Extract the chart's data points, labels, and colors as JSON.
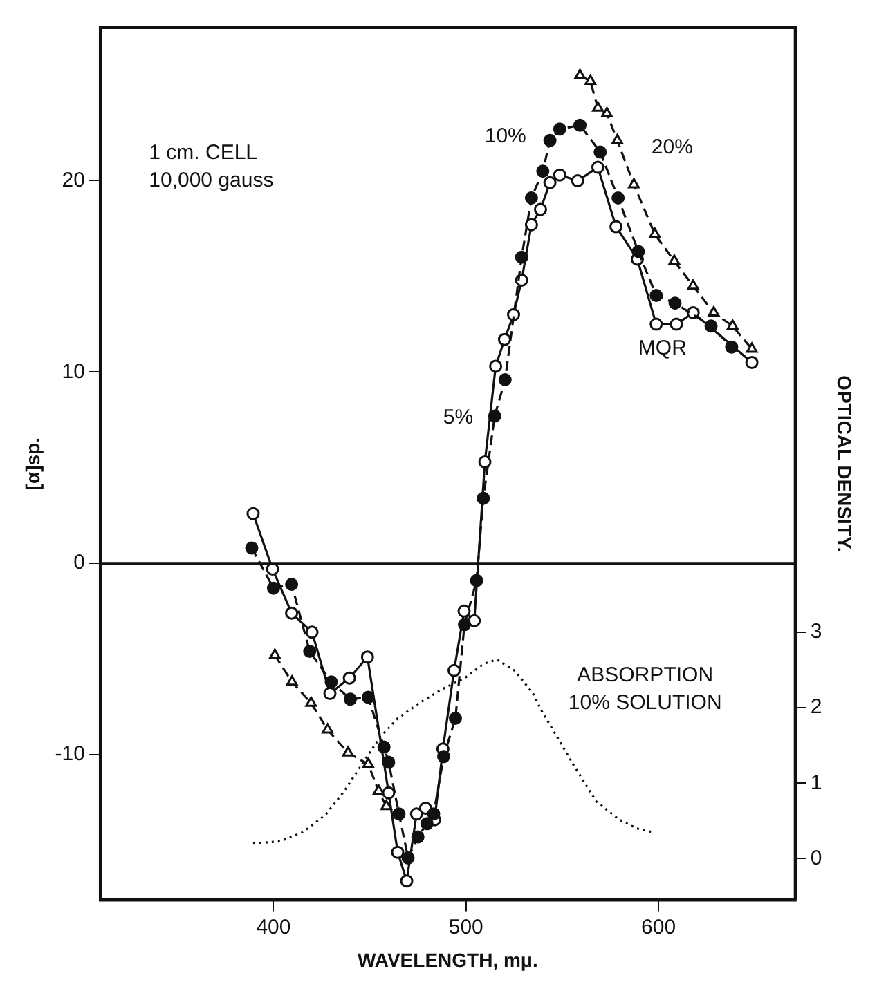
{
  "chart_data": {
    "type": "line",
    "xlabel": "WAVELENGTH, mμ.",
    "ylabel": "[α]sp.",
    "y2label": "OPTICAL DENSITY.",
    "xlim": [
      310,
      671
    ],
    "xticks": [
      400,
      500,
      600
    ],
    "ylim": [
      -17.6,
      28
    ],
    "yticks": [
      -10,
      0,
      10,
      20
    ],
    "y2lim": [
      -0.55,
      11.02
    ],
    "y2ticks": [
      0,
      1,
      2,
      3
    ],
    "grid": false,
    "legend": false,
    "series": [
      {
        "name": "5%",
        "color": "#111111",
        "marker": "circle",
        "line_style": "solid",
        "x": [
          389.4,
          399.5,
          409.4,
          420,
          429.3,
          439.4,
          448.8,
          459.8,
          464.5,
          469.2,
          474.3,
          479,
          483.7,
          488,
          493.8,
          499,
          504.3,
          509.8,
          515.4,
          520,
          524.7,
          528.9,
          534,
          538.7,
          543.6,
          548.7,
          558,
          568.5,
          577.9,
          589,
          598.8,
          609.3,
          618,
          648.5
        ],
        "values": [
          2.6,
          -0.3,
          -2.6,
          -3.6,
          -6.8,
          -6,
          -4.9,
          -12,
          -15.1,
          -16.6,
          -13.1,
          -12.8,
          -13.4,
          -9.7,
          -5.6,
          -2.5,
          -3,
          5.3,
          10.3,
          11.7,
          13,
          14.8,
          17.7,
          18.5,
          19.9,
          20.3,
          20,
          20.7,
          17.6,
          15.9,
          12.5,
          12.5,
          13.1,
          10.5
        ]
      },
      {
        "name": "10%",
        "color": "#111111",
        "marker": "circle",
        "line_style": "dashed",
        "x": [
          388.7,
          400,
          409.4,
          418.8,
          430,
          439.9,
          449.2,
          457.4,
          459.8,
          465.2,
          469.9,
          475,
          479.7,
          483.2,
          488.4,
          494.5,
          499.2,
          505.5,
          509,
          514.9,
          520.3,
          528.9,
          534,
          539.9,
          543.6,
          548.7,
          559.2,
          569.7,
          579,
          589.5,
          598.8,
          608.6,
          627.3,
          638
        ],
        "values": [
          0.8,
          -1.3,
          -1.1,
          -4.6,
          -6.2,
          -7.1,
          -7,
          -9.6,
          -10.4,
          -13.1,
          -15.4,
          -14.3,
          -13.6,
          -13.1,
          -10.1,
          -8.1,
          -3.2,
          -0.9,
          3.4,
          7.7,
          9.6,
          16,
          19.1,
          20.5,
          22.1,
          22.7,
          22.9,
          21.5,
          19.1,
          16.3,
          14,
          13.6,
          12.4,
          11.3
        ]
      },
      {
        "name": "20%",
        "color": "#111111",
        "marker": "triangle",
        "line_style": "dashed",
        "x": [
          400.7,
          409.6,
          419.5,
          428.1,
          438.7,
          449.2,
          454.6,
          458.6,
          510,
          559.2,
          564.6,
          568.5,
          573.2,
          578.6,
          587.2,
          598.1,
          608.2,
          618,
          628.7,
          638.5,
          648.5
        ],
        "values": [
          -4.8,
          -6.2,
          -7.3,
          -8.7,
          -9.9,
          -10.5,
          -11.9,
          -12.7,
          null,
          25.5,
          25.2,
          23.8,
          23.5,
          22.1,
          19.8,
          17.2,
          15.8,
          14.5,
          13.1,
          12.4,
          11.2
        ]
      },
      {
        "color": "#111111",
        "marker": "none",
        "line_style": "dotted",
        "axis": "y2",
        "x": [
          389.4,
          403.5,
          415.2,
          427,
          436.3,
          445.7,
          455.1,
          464.5,
          476.2,
          487.9,
          499.6,
          509,
          516,
          525.4,
          534.8,
          539.5,
          546.5,
          555.9,
          567.6,
          579.4,
          588.7,
          597
        ],
        "values": [
          0.2,
          0.23,
          0.35,
          0.58,
          0.88,
          1.24,
          1.6,
          1.86,
          2.07,
          2.25,
          2.4,
          2.58,
          2.64,
          2.49,
          2.19,
          1.95,
          1.65,
          1.24,
          0.76,
          0.52,
          0.4,
          0.35
        ]
      }
    ],
    "ref_lines": [
      {
        "axis": "y",
        "value": 0,
        "color": "#111111"
      }
    ],
    "annotations": [
      "1 cm. CELL\n10,000 gauss",
      "MQR",
      "ABSORPTION\n10% SOLUTION"
    ]
  }
}
